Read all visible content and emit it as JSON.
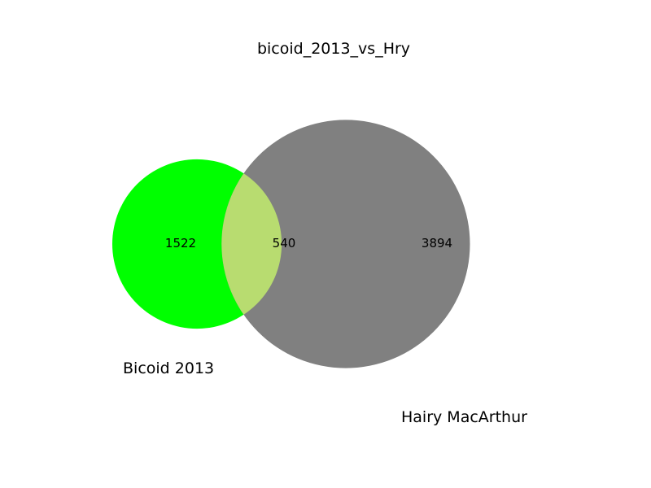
{
  "chart_data": {
    "type": "venn",
    "title": "bicoid_2013_vs_Hry",
    "sets": [
      {
        "name": "Bicoid 2013",
        "color": "#00ff00"
      },
      {
        "name": "Hairy MacArthur",
        "color": "#808080"
      }
    ],
    "regions": {
      "only_a": {
        "label": "1522",
        "value": 1522
      },
      "intersection": {
        "label": "540",
        "value": 540
      },
      "only_b": {
        "label": "3894",
        "value": 3894
      }
    },
    "intersection_color": "#b8dc70"
  }
}
